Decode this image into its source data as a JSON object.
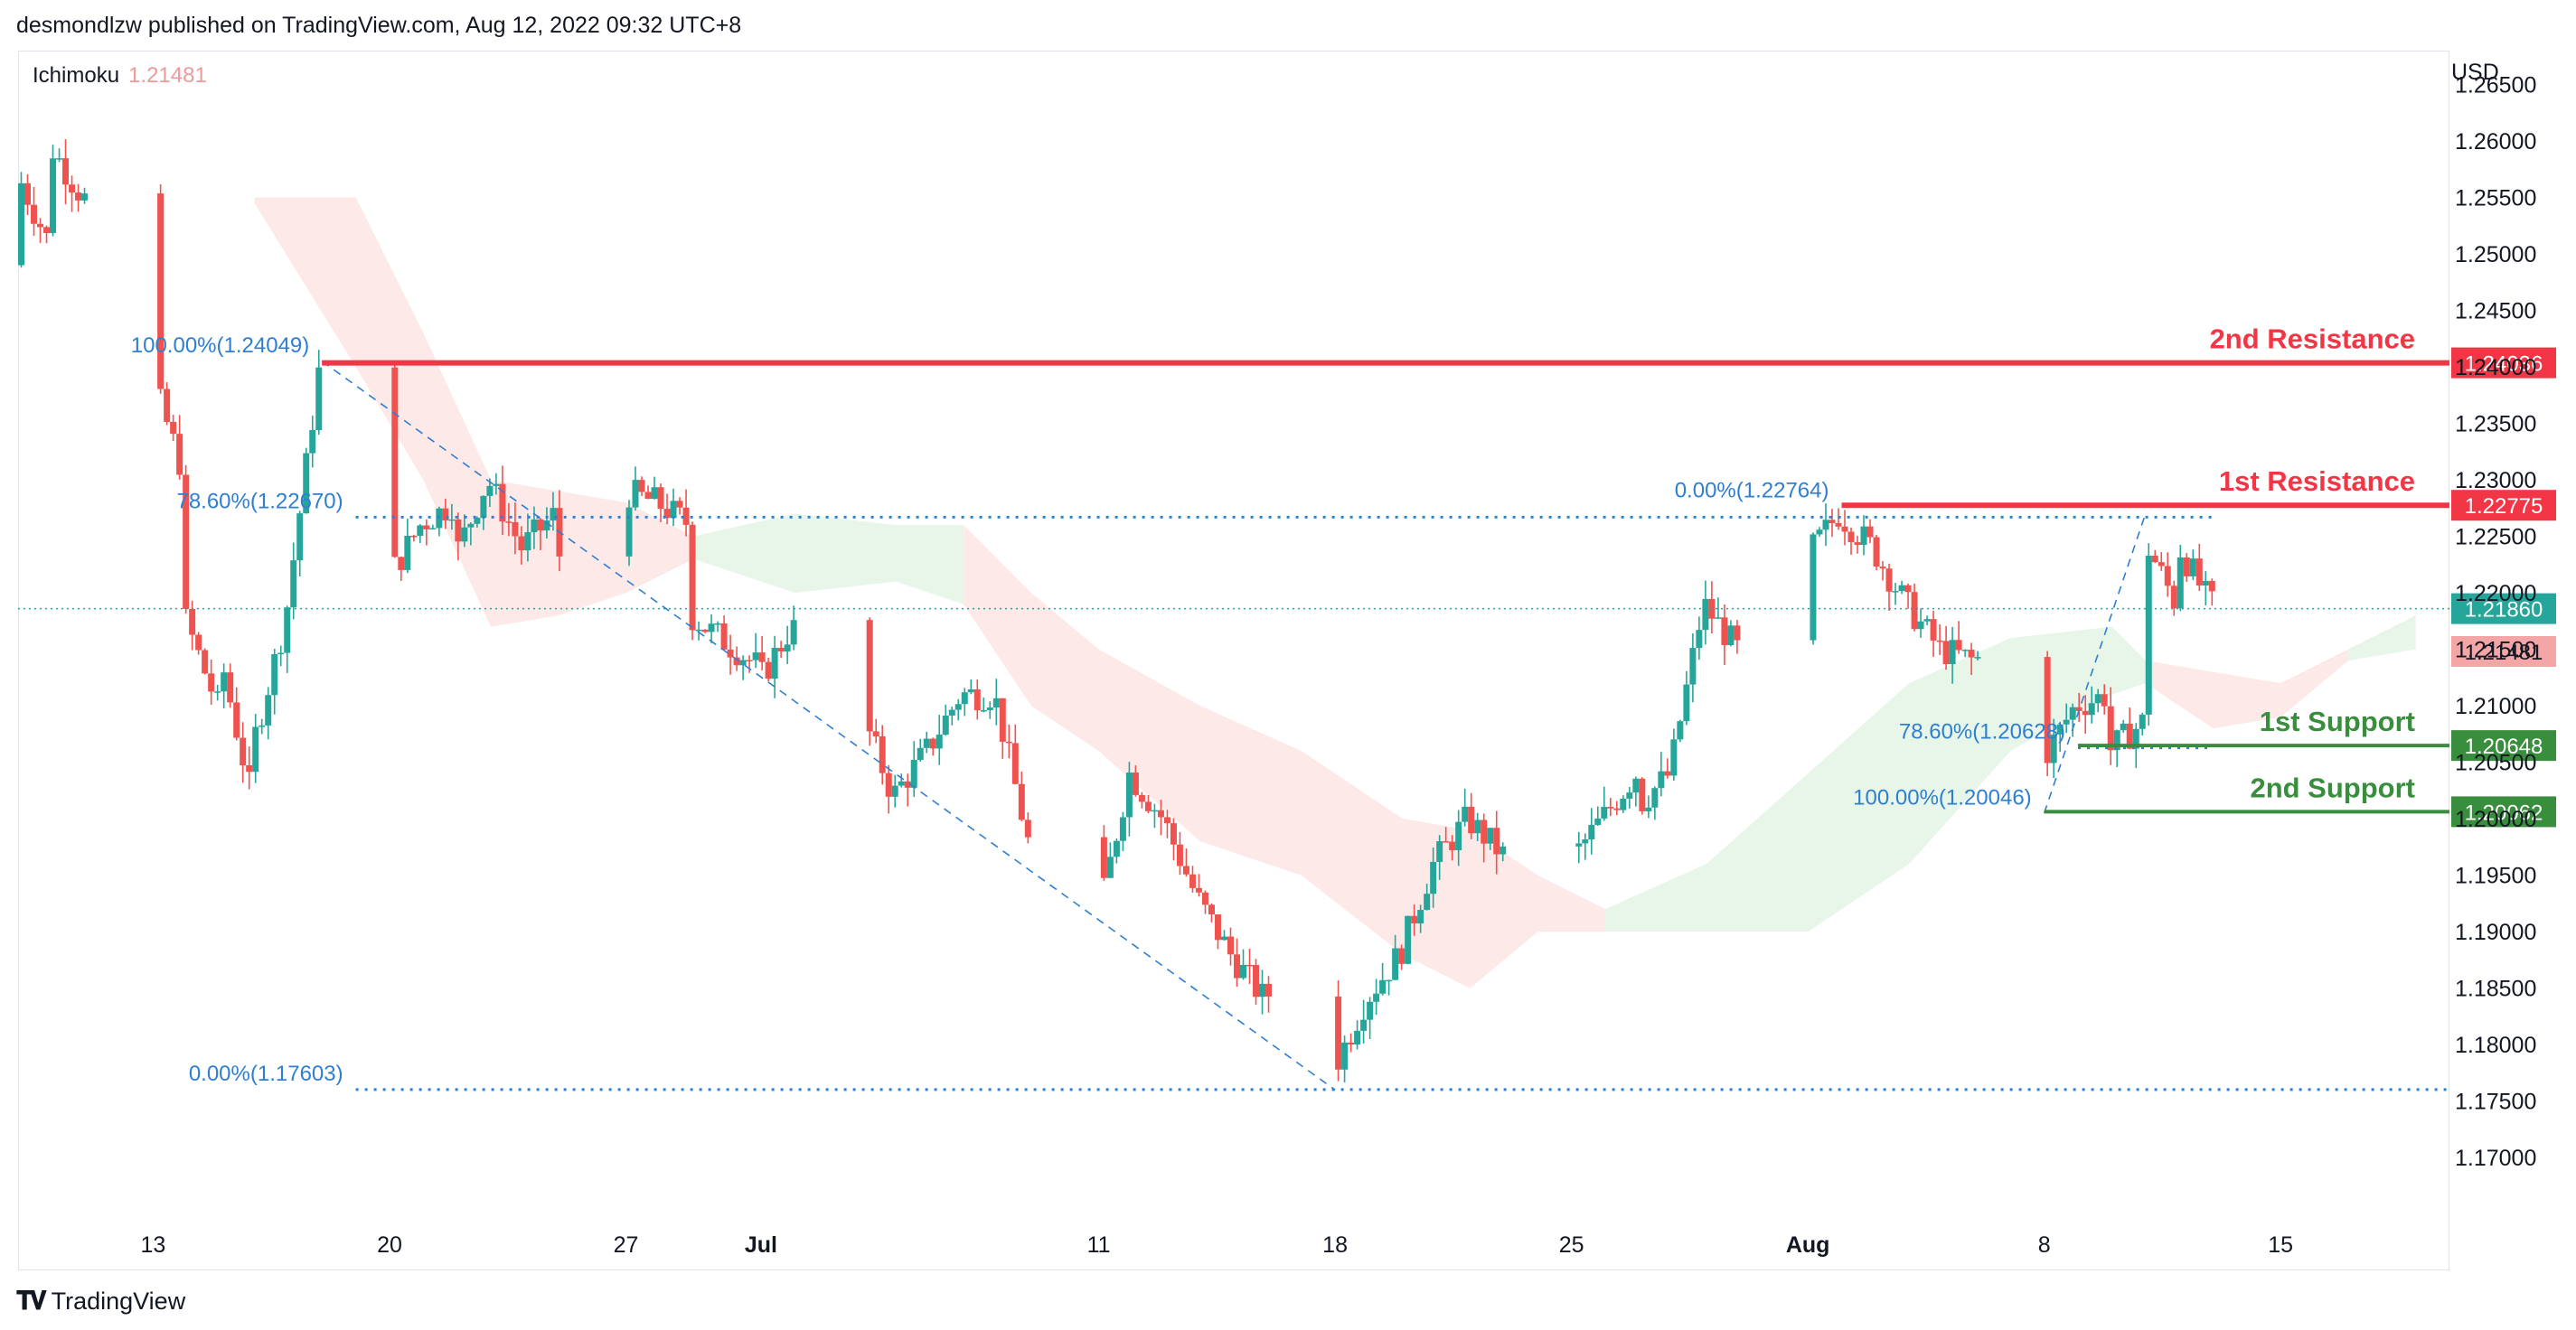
{
  "header": {
    "text": "desmondlzw published on TradingView.com, Aug 12, 2022 09:32 UTC+8"
  },
  "indicator": {
    "name": "Ichimoku",
    "value": "1.21481"
  },
  "footer": {
    "brand": "TradingView"
  },
  "colors": {
    "up": "#26a69a",
    "down": "#ef5350",
    "resistance": "#f23645",
    "support": "#388e3c",
    "fib": "#2f7fd1",
    "cloud_bull": "#e8f5e9",
    "cloud_bear": "#fde9e7"
  },
  "chart_data": {
    "type": "candlestick",
    "symbol_currency": "USD",
    "ylim": [
      1.1645,
      1.268
    ],
    "xlim": [
      "2022-06-09",
      "2022-08-20"
    ],
    "y_ticks": [
      "1.26500",
      "1.26000",
      "1.25500",
      "1.25000",
      "1.24500",
      "1.24000",
      "1.23500",
      "1.23000",
      "1.22500",
      "1.22000",
      "1.21500",
      "1.21000",
      "1.20500",
      "1.20000",
      "1.19500",
      "1.19000",
      "1.18500",
      "1.18000",
      "1.17500",
      "1.17000"
    ],
    "x_ticks": [
      {
        "label": "13",
        "date": "2022-06-13",
        "bold": false
      },
      {
        "label": "20",
        "date": "2022-06-20",
        "bold": false
      },
      {
        "label": "27",
        "date": "2022-06-27",
        "bold": false
      },
      {
        "label": "Jul",
        "date": "2022-07-01",
        "bold": true
      },
      {
        "label": "11",
        "date": "2022-07-11",
        "bold": false
      },
      {
        "label": "18",
        "date": "2022-07-18",
        "bold": false
      },
      {
        "label": "25",
        "date": "2022-07-25",
        "bold": false
      },
      {
        "label": "Aug",
        "date": "2022-08-01",
        "bold": true
      },
      {
        "label": "8",
        "date": "2022-08-08",
        "bold": false
      },
      {
        "label": "15",
        "date": "2022-08-15",
        "bold": false
      }
    ],
    "key_prices": [
      [
        1.249,
        "2022-06-09"
      ],
      [
        1.2575,
        "2022-06-09"
      ],
      [
        1.251,
        "2022-06-10"
      ],
      [
        1.2498,
        "2022-06-10"
      ],
      [
        1.2598,
        "2022-06-10"
      ],
      [
        1.255,
        "2022-06-11"
      ],
      [
        1.253,
        "2022-06-12"
      ],
      [
        1.249,
        "2022-06-12"
      ],
      [
        1.2395,
        "2022-06-13"
      ],
      [
        1.2305,
        "2022-06-14"
      ],
      [
        1.218,
        "2022-06-14"
      ],
      [
        1.21,
        "2022-06-15"
      ],
      [
        1.2155,
        "2022-06-15"
      ],
      [
        1.202,
        "2022-06-16"
      ],
      [
        1.206,
        "2022-06-16"
      ],
      [
        1.2175,
        "2022-06-17"
      ],
      [
        1.2395,
        "2022-06-18"
      ],
      [
        1.23,
        "2022-06-19"
      ],
      [
        1.221,
        "2022-06-20"
      ],
      [
        1.226,
        "2022-06-21"
      ],
      [
        1.228,
        "2022-06-22"
      ],
      [
        1.223,
        "2022-06-22"
      ],
      [
        1.23,
        "2022-06-23"
      ],
      [
        1.224,
        "2022-06-24"
      ],
      [
        1.227,
        "2022-06-25"
      ],
      [
        1.223,
        "2022-06-25"
      ],
      [
        1.226,
        "2022-06-26"
      ],
      [
        1.229,
        "2022-06-27"
      ],
      [
        1.228,
        "2022-06-28"
      ],
      [
        1.226,
        "2022-06-29"
      ],
      [
        1.218,
        "2022-06-29"
      ],
      [
        1.2135,
        "2022-07-01"
      ],
      [
        1.212,
        "2022-07-01"
      ],
      [
        1.217,
        "2022-07-02"
      ],
      [
        1.21,
        "2022-07-04"
      ],
      [
        1.202,
        "2022-07-05"
      ],
      [
        1.206,
        "2022-07-06"
      ],
      [
        1.211,
        "2022-07-07"
      ],
      [
        1.211,
        "2022-07-08"
      ],
      [
        1.198,
        "2022-07-09"
      ],
      [
        1.194,
        "2022-07-10"
      ],
      [
        1.19,
        "2022-07-11"
      ],
      [
        1.204,
        "2022-07-12"
      ],
      [
        1.2,
        "2022-07-13"
      ],
      [
        1.193,
        "2022-07-14"
      ],
      [
        1.188,
        "2022-07-15"
      ],
      [
        1.184,
        "2022-07-16"
      ],
      [
        1.188,
        "2022-07-17"
      ],
      [
        1.185,
        "2022-07-17"
      ],
      [
        1.18,
        "2022-07-18"
      ],
      [
        1.1775,
        "2022-07-18"
      ],
      [
        1.184,
        "2022-07-19"
      ],
      [
        1.188,
        "2022-07-20"
      ],
      [
        1.196,
        "2022-07-21"
      ],
      [
        1.2,
        "2022-07-22"
      ],
      [
        1.197,
        "2022-07-23"
      ],
      [
        1.194,
        "2022-07-24"
      ],
      [
        1.196,
        "2022-07-25"
      ],
      [
        1.2,
        "2022-07-26"
      ],
      [
        1.204,
        "2022-07-27"
      ],
      [
        1.201,
        "2022-07-27"
      ],
      [
        1.204,
        "2022-07-28"
      ],
      [
        1.219,
        "2022-07-29"
      ],
      [
        1.215,
        "2022-07-30"
      ],
      [
        1.218,
        "2022-07-31"
      ],
      [
        1.223,
        "2022-08-01"
      ],
      [
        1.227,
        "2022-08-02"
      ],
      [
        1.224,
        "2022-08-03"
      ],
      [
        1.219,
        "2022-08-04"
      ],
      [
        1.215,
        "2022-08-05"
      ],
      [
        1.214,
        "2022-08-06"
      ],
      [
        1.215,
        "2022-08-07"
      ],
      [
        1.208,
        "2022-08-08"
      ],
      [
        1.205,
        "2022-08-08"
      ],
      [
        1.21,
        "2022-08-09"
      ],
      [
        1.211,
        "2022-08-10"
      ],
      [
        1.206,
        "2022-08-10"
      ],
      [
        1.2085,
        "2022-08-11"
      ],
      [
        1.225,
        "2022-08-11"
      ],
      [
        1.219,
        "2022-08-12"
      ],
      [
        1.2245,
        "2022-08-12"
      ],
      [
        1.219,
        "2022-08-13"
      ],
      [
        1.2186,
        "2022-08-14"
      ]
    ],
    "ichimoku_cloud": [
      {
        "date": "2022-06-16",
        "top": 1.255,
        "bottom": 1.2545,
        "color": "bear"
      },
      {
        "date": "2022-06-19",
        "top": 1.255,
        "bottom": 1.24,
        "color": "bear"
      },
      {
        "date": "2022-06-21",
        "top": 1.243,
        "bottom": 1.23,
        "color": "bear"
      },
      {
        "date": "2022-06-23",
        "top": 1.23,
        "bottom": 1.217,
        "color": "bear"
      },
      {
        "date": "2022-06-25",
        "top": 1.229,
        "bottom": 1.218,
        "color": "bear"
      },
      {
        "date": "2022-06-27",
        "top": 1.228,
        "bottom": 1.22,
        "color": "bear"
      },
      {
        "date": "2022-06-29",
        "top": 1.225,
        "bottom": 1.223,
        "color": "bull"
      },
      {
        "date": "2022-07-02",
        "top": 1.227,
        "bottom": 1.22,
        "color": "bull"
      },
      {
        "date": "2022-07-05",
        "top": 1.226,
        "bottom": 1.221,
        "color": "bull"
      },
      {
        "date": "2022-07-07",
        "top": 1.226,
        "bottom": 1.219,
        "color": "bear"
      },
      {
        "date": "2022-07-09",
        "top": 1.22,
        "bottom": 1.21,
        "color": "bear"
      },
      {
        "date": "2022-07-11",
        "top": 1.215,
        "bottom": 1.206,
        "color": "bear"
      },
      {
        "date": "2022-07-14",
        "top": 1.21,
        "bottom": 1.198,
        "color": "bear"
      },
      {
        "date": "2022-07-17",
        "top": 1.206,
        "bottom": 1.195,
        "color": "bear"
      },
      {
        "date": "2022-07-20",
        "top": 1.2,
        "bottom": 1.188,
        "color": "bear"
      },
      {
        "date": "2022-07-22",
        "top": 1.199,
        "bottom": 1.185,
        "color": "bear"
      },
      {
        "date": "2022-07-24",
        "top": 1.195,
        "bottom": 1.19,
        "color": "bear"
      },
      {
        "date": "2022-07-26",
        "top": 1.192,
        "bottom": 1.19,
        "color": "bull"
      },
      {
        "date": "2022-07-29",
        "top": 1.196,
        "bottom": 1.19,
        "color": "bull"
      },
      {
        "date": "2022-08-01",
        "top": 1.204,
        "bottom": 1.19,
        "color": "bull"
      },
      {
        "date": "2022-08-04",
        "top": 1.212,
        "bottom": 1.196,
        "color": "bull"
      },
      {
        "date": "2022-08-07",
        "top": 1.216,
        "bottom": 1.206,
        "color": "bull"
      },
      {
        "date": "2022-08-10",
        "top": 1.217,
        "bottom": 1.211,
        "color": "bull"
      },
      {
        "date": "2022-08-11",
        "top": 1.214,
        "bottom": 1.212,
        "color": "bear"
      },
      {
        "date": "2022-08-13",
        "top": 1.213,
        "bottom": 1.208,
        "color": "bear"
      },
      {
        "date": "2022-08-15",
        "top": 1.212,
        "bottom": 1.209,
        "color": "bear"
      },
      {
        "date": "2022-08-17",
        "top": 1.215,
        "bottom": 1.214,
        "color": "bull"
      },
      {
        "date": "2022-08-19",
        "top": 1.218,
        "bottom": 1.215,
        "color": "bull"
      }
    ],
    "fib_levels": [
      {
        "label": "100.00%(1.24049)",
        "price": 1.24049,
        "from": "2022-06-18",
        "to": "2022-06-18"
      },
      {
        "label": "78.60%(1.22670)",
        "price": 1.2267,
        "from": "2022-06-19",
        "to": "2022-08-13"
      },
      {
        "label": "0.00%(1.17603)",
        "price": 1.17603,
        "from": "2022-06-19",
        "to": "2022-08-20"
      },
      {
        "label": "0.00%(1.22764)",
        "price": 1.22764,
        "from": "2022-08-02",
        "to": "2022-08-02"
      },
      {
        "label": "78.60%(1.20628)",
        "price": 1.20628,
        "from": "2022-08-09",
        "to": "2022-08-13"
      },
      {
        "label": "100.00%(1.20046)",
        "price": 1.20046,
        "from": "2022-08-08",
        "to": "2022-08-08"
      }
    ],
    "trend_lines": [
      {
        "from": [
          "2022-06-18",
          1.2405
        ],
        "to": [
          "2022-07-18",
          1.176
        ]
      },
      {
        "from": [
          "2022-08-08",
          1.2005
        ],
        "to": [
          "2022-08-11",
          1.227
        ]
      }
    ],
    "sr_levels": [
      {
        "label": "2nd Resistance",
        "price": 1.24036,
        "tag": "1.24036",
        "kind": "resistance",
        "from": "2022-06-18"
      },
      {
        "label": "1st Resistance",
        "price": 1.22775,
        "tag": "1.22775",
        "kind": "resistance",
        "from": "2022-08-02"
      },
      {
        "label": "1st Support",
        "price": 1.20648,
        "tag": "1.20648",
        "kind": "support",
        "from": "2022-08-09"
      },
      {
        "label": "2nd Support",
        "price": 1.20062,
        "tag": "1.20062",
        "kind": "support",
        "from": "2022-08-08"
      }
    ],
    "current_price": {
      "price": 1.2186,
      "tag": "1.21860"
    },
    "ichimoku_tag": {
      "price": 1.21481,
      "tag": "1.21481"
    }
  }
}
